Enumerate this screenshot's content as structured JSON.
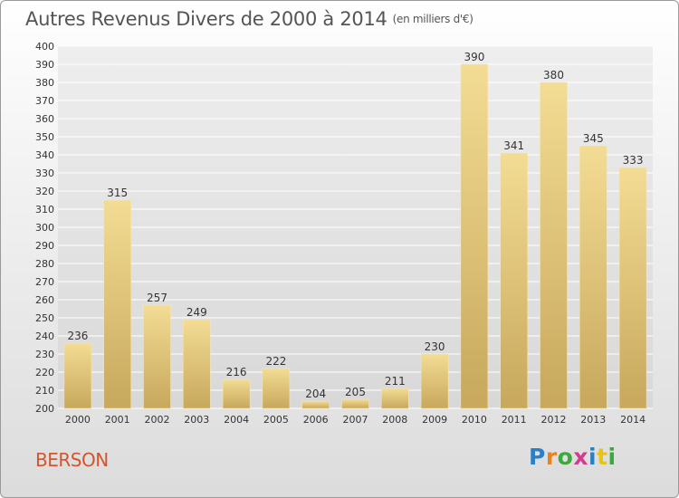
{
  "header": {
    "title": "Autres Revenus Divers de 2000 à 2014",
    "unit": "(en milliers d'€)"
  },
  "commune": "BERSON",
  "logo": {
    "letters": [
      "P",
      "r",
      "o",
      "x",
      "i",
      "t",
      "i"
    ]
  },
  "colors": {
    "bar_light": "#f3dc94",
    "bar_dark": "#c7a85c",
    "grid": "#ffffff",
    "title": "#555555",
    "commune": "#d4542e"
  },
  "chart_data": {
    "type": "bar",
    "categories": [
      "2000",
      "2001",
      "2002",
      "2003",
      "2004",
      "2005",
      "2006",
      "2007",
      "2008",
      "2009",
      "2010",
      "2011",
      "2012",
      "2013",
      "2014"
    ],
    "values": [
      236,
      315,
      257,
      249,
      216,
      222,
      204,
      205,
      211,
      230,
      390,
      341,
      380,
      345,
      333
    ],
    "title": "Autres Revenus Divers de 2000 à 2014",
    "subtitle": "(en milliers d'€)",
    "ylim": [
      200,
      400
    ],
    "yticks": [
      200,
      210,
      220,
      230,
      240,
      250,
      260,
      270,
      280,
      290,
      300,
      310,
      320,
      330,
      340,
      350,
      360,
      370,
      380,
      390,
      400
    ],
    "grid": true,
    "data_labels": true
  }
}
